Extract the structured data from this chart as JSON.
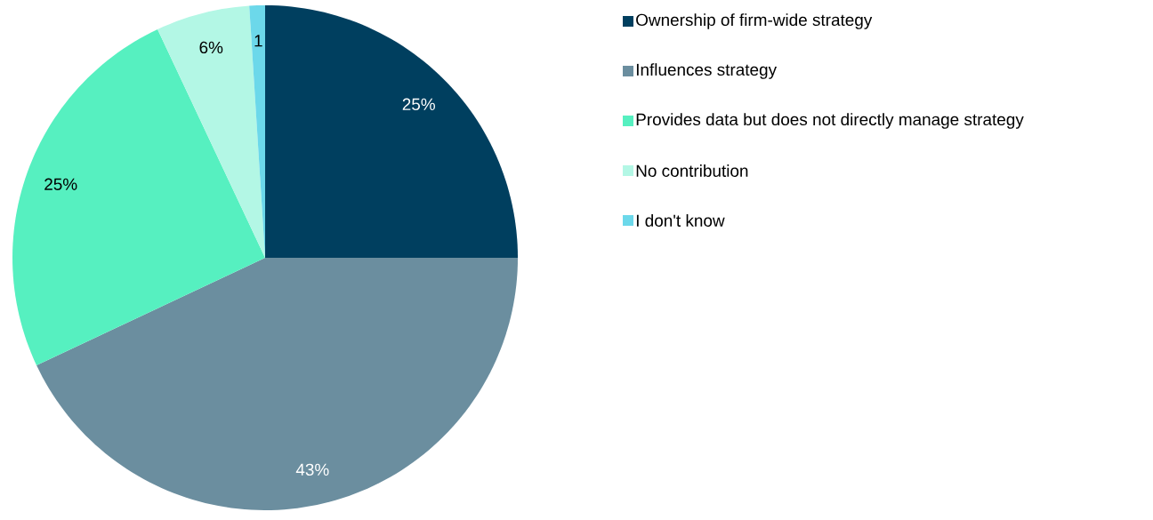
{
  "chart_data": {
    "type": "pie",
    "categories": [
      "Ownership of firm-wide strategy",
      "Influences strategy",
      "Provides data but does not directly manage strategy",
      "No contribution",
      "I don't know"
    ],
    "values": [
      25,
      43,
      25,
      6,
      1
    ],
    "value_labels": [
      "25%",
      "43%",
      "25%",
      "6%",
      "1"
    ],
    "colors": [
      "#003f5f",
      "#6b8e9f",
      "#56f0c0",
      "#b3f7e5",
      "#6cd8ea"
    ],
    "legend": "right"
  }
}
